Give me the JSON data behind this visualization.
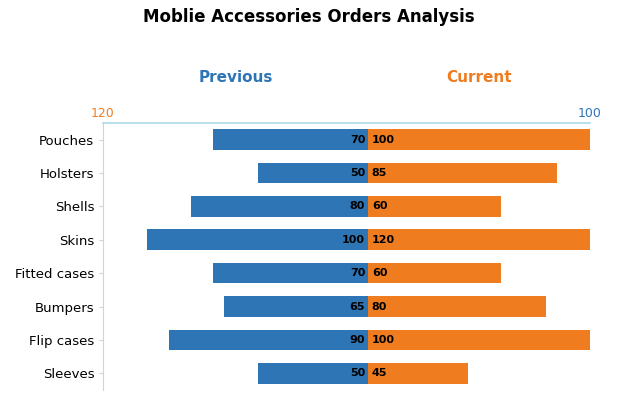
{
  "title": "Moblie Accessories Orders Analysis",
  "categories": [
    "Pouches",
    "Holsters",
    "Shells",
    "Skins",
    "Fitted cases",
    "Bumpers",
    "Flip cases",
    "Sleeves"
  ],
  "previous": [
    70,
    50,
    80,
    100,
    70,
    65,
    90,
    50
  ],
  "current": [
    100,
    85,
    60,
    120,
    60,
    80,
    100,
    45
  ],
  "blue_color": "#2e75b6",
  "orange_color": "#f07c20",
  "prev_label": "Previous",
  "curr_label": "Current",
  "prev_axis_max": 120,
  "curr_axis_max": 100,
  "prev_axis_color": "#f07c20",
  "curr_axis_color": "#2e75b6",
  "title_fontsize": 12,
  "label_fontsize": 9.5,
  "bar_label_fontsize": 8,
  "legend_fontsize": 11,
  "background_color": "#ffffff"
}
